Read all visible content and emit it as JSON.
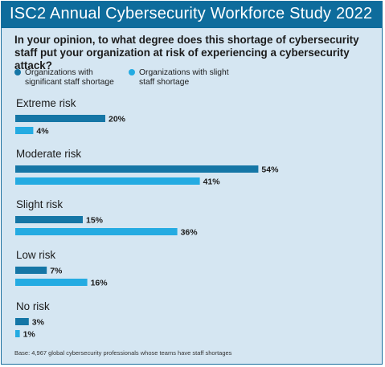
{
  "header": {
    "title": "ISC2 Annual Cybersecurity Workforce Study 2022",
    "question": "In your opinion, to what degree does this shortage of cybersecurity staff put your organization at risk of experiencing a cybersecurity attack?"
  },
  "legend": [
    {
      "label": "Organizations with significant staff shortage",
      "color": "#1576a6"
    },
    {
      "label": "Organizations with slight staff shortage",
      "color": "#24abe2"
    }
  ],
  "footnote": "Base: 4,967 global cybersecurity professionals whose teams have staff shortages",
  "chart_data": {
    "type": "bar",
    "orientation": "horizontal",
    "categories": [
      "Extreme risk",
      "Moderate risk",
      "Slight risk",
      "Low risk",
      "No risk"
    ],
    "series": [
      {
        "name": "Organizations with significant staff shortage",
        "values": [
          20,
          54,
          15,
          7,
          3
        ],
        "color": "#1576a6"
      },
      {
        "name": "Organizations with slight staff shortage",
        "values": [
          4,
          41,
          36,
          16,
          1
        ],
        "color": "#24abe2"
      }
    ],
    "value_suffix": "%",
    "grid": false,
    "legend_position": "top-left"
  }
}
